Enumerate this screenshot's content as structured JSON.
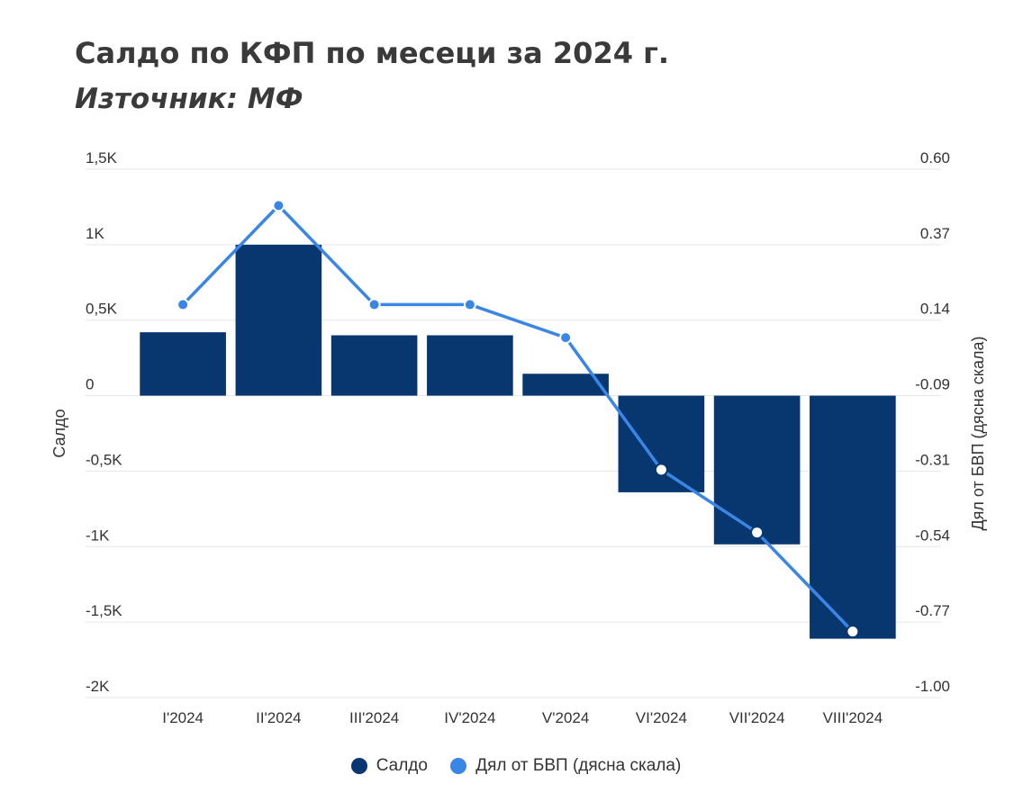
{
  "title": "Салдо по КФП по месеци за 2024 г.",
  "subtitle": "Източник: МФ",
  "colors": {
    "bar": "#08366f",
    "line": "#3a86e6",
    "grid": "#e6e6e6"
  },
  "chart_data": {
    "type": "bar",
    "categories": [
      "I'2024",
      "II'2024",
      "III'2024",
      "IV'2024",
      "V'2024",
      "VI'2024",
      "VII'2024",
      "VIII'2024"
    ],
    "series": [
      {
        "name": "Салдо",
        "type": "bar",
        "axis": "left",
        "values": [
          420,
          1000,
          400,
          400,
          145,
          -640,
          -985,
          -1610
        ]
      },
      {
        "name": "Дял от БВП (дясна скала)",
        "type": "line",
        "axis": "right",
        "values": [
          0.19,
          0.49,
          0.19,
          0.19,
          0.09,
          -0.31,
          -0.5,
          -0.8
        ]
      }
    ],
    "ylabel": "Салдо",
    "y2label": "Дял от БВП (дясна скала)",
    "ylim": [
      -2000,
      1500
    ],
    "y2lim": [
      -1.0,
      0.6
    ],
    "yticks": [
      "1,5K",
      "1K",
      "0,5K",
      "0",
      "-0,5K",
      "-1K",
      "-1,5K",
      "-2K"
    ],
    "y2ticks": [
      "0.60",
      "0.37",
      "0.14",
      "-0.09",
      "-0.31",
      "-0.54",
      "-0.77",
      "-1.00"
    ],
    "grid": true,
    "legend": "bottom"
  }
}
